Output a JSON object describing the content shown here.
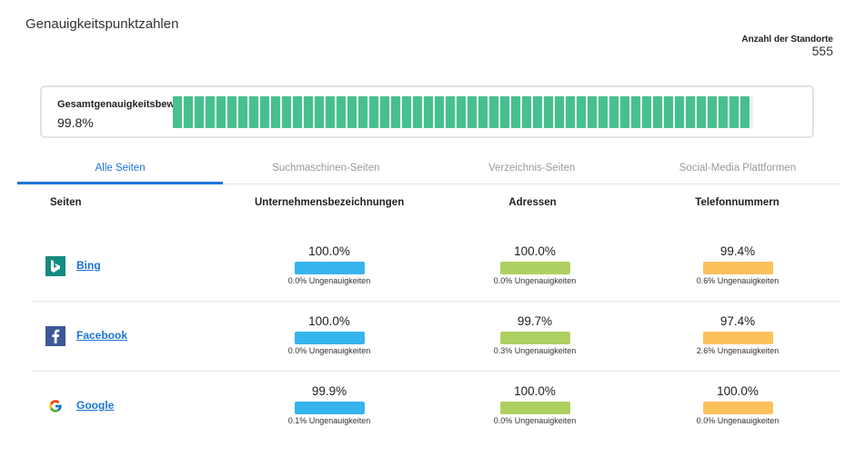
{
  "header": {
    "title": "Genauigkeitspunktzahlen",
    "locations_label": "Anzahl der Standorte",
    "locations_count": "555"
  },
  "overall": {
    "label": "Gesamtgenauigkeitsbewertung",
    "value": "99.8%",
    "fraction": 0.998,
    "fill_color": "#47c08e",
    "track_color": "#ebf6f8"
  },
  "tabs": [
    {
      "label": "Alle Seiten",
      "active": true
    },
    {
      "label": "Suchmaschinen-Seiten",
      "active": false
    },
    {
      "label": "Verzeichnis-Seiten",
      "active": false
    },
    {
      "label": "Social-Media Plattformen",
      "active": false
    }
  ],
  "columns": [
    "Seiten",
    "Unternehmensbezeichnungen",
    "Adressen",
    "Telefonnummern"
  ],
  "metric_colors": [
    "#36b4ee",
    "#aed061",
    "#fdc15c"
  ],
  "rows": [
    {
      "site": "Bing",
      "icon": "bing-icon",
      "metrics": [
        {
          "value": "100.0%",
          "note": "0.0% Ungenauigkeiten"
        },
        {
          "value": "100.0%",
          "note": "0.0% Ungenauigkeiten"
        },
        {
          "value": "99.4%",
          "note": "0.6% Ungenauigkeiten"
        }
      ]
    },
    {
      "site": "Facebook",
      "icon": "facebook-icon",
      "metrics": [
        {
          "value": "100.0%",
          "note": "0.0% Ungenauigkeiten"
        },
        {
          "value": "99.7%",
          "note": "0.3% Ungenauigkeiten"
        },
        {
          "value": "97.4%",
          "note": "2.6% Ungenauigkeiten"
        }
      ]
    },
    {
      "site": "Google",
      "icon": "google-icon",
      "metrics": [
        {
          "value": "99.9%",
          "note": "0.1% Ungenauigkeiten"
        },
        {
          "value": "100.0%",
          "note": "0.0% Ungenauigkeiten"
        },
        {
          "value": "100.0%",
          "note": "0.0% Ungenauigkeiten"
        }
      ]
    }
  ]
}
